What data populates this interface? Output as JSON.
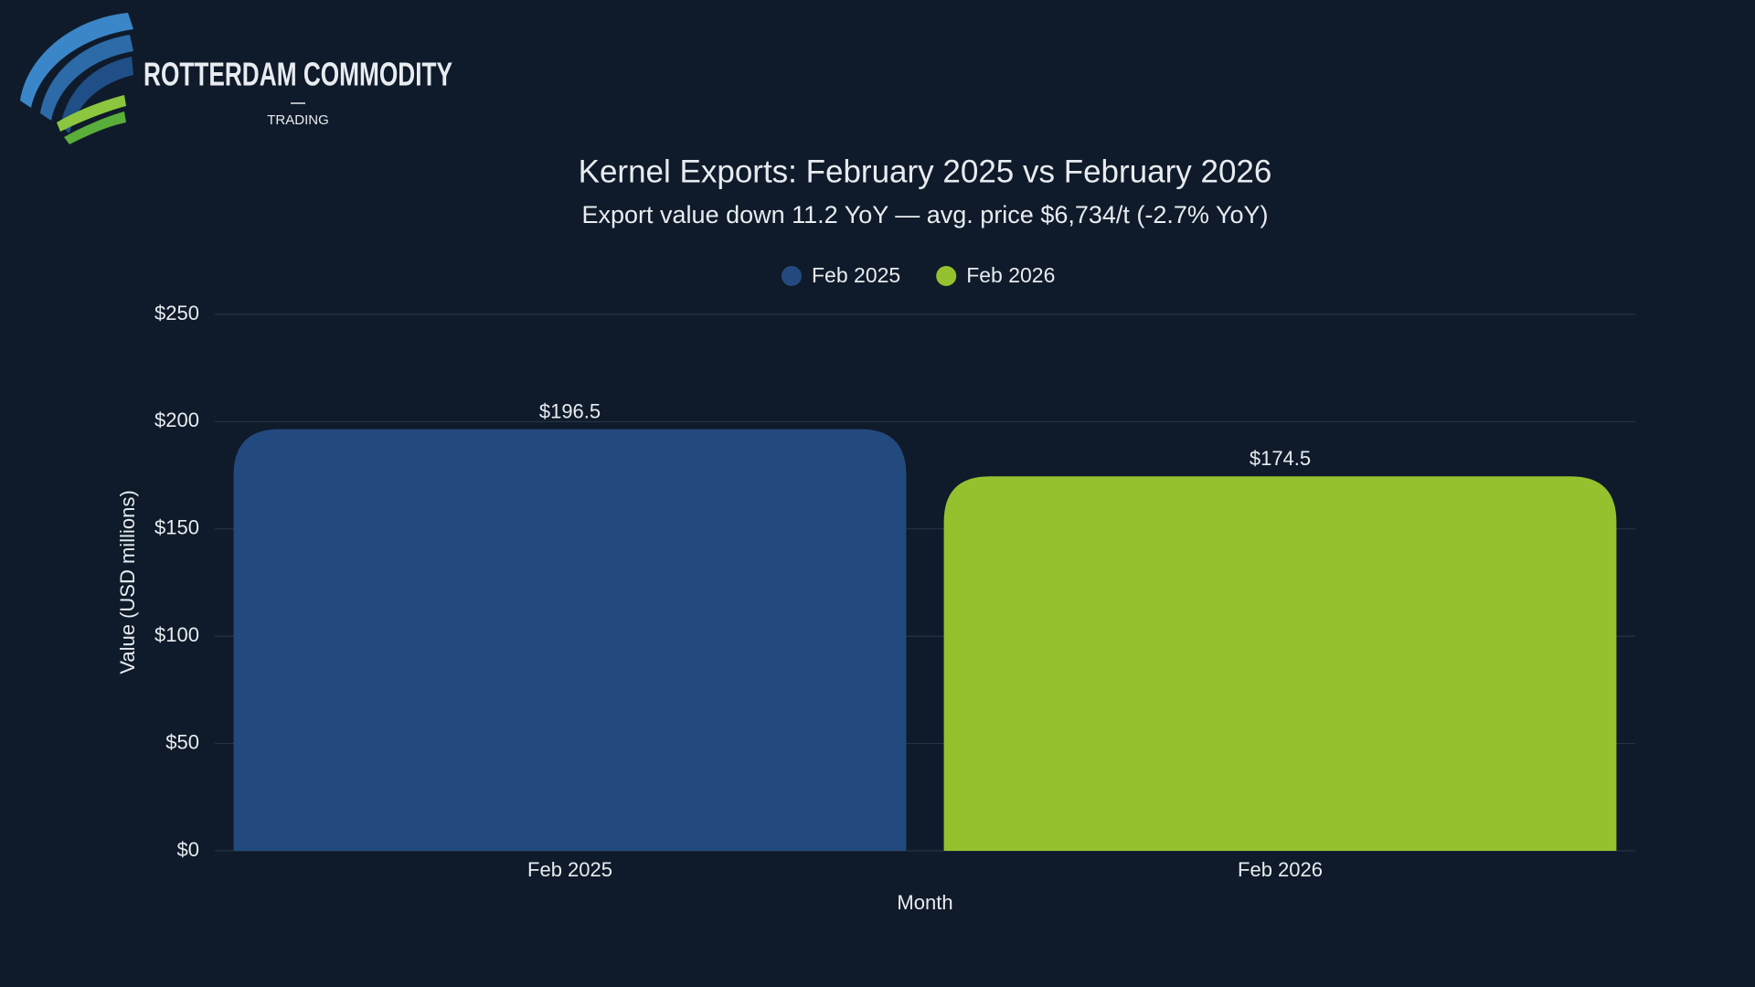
{
  "brand": {
    "name": "ROTTERDAM COMMODITY",
    "tagline": "TRADING"
  },
  "chart_data": {
    "type": "bar",
    "title": "Kernel Exports: February 2025 vs February 2026",
    "subtitle": "Export value down 11.2 YoY — avg. price $6,734/t (-2.7% YoY)",
    "x_label": "Month",
    "y_label": "Value (USD millions)",
    "categories": [
      "Feb 2025",
      "Feb 2026"
    ],
    "series": [
      {
        "name": "Feb 2025",
        "color": "#234a7e",
        "values": [
          196.5,
          null
        ],
        "value_labels": [
          "$196.5",
          null
        ]
      },
      {
        "name": "Feb 2026",
        "color": "#96c12f",
        "values": [
          null,
          174.5
        ],
        "value_labels": [
          null,
          "$174.5"
        ]
      }
    ],
    "ylim": [
      0,
      250
    ],
    "yticks": [
      {
        "value": 0,
        "label": "$0"
      },
      {
        "value": 50,
        "label": "$50"
      },
      {
        "value": 100,
        "label": "$100"
      },
      {
        "value": 150,
        "label": "$150"
      },
      {
        "value": 200,
        "label": "$200"
      },
      {
        "value": 250,
        "label": "$250"
      }
    ],
    "grid": true,
    "legend": "top"
  }
}
